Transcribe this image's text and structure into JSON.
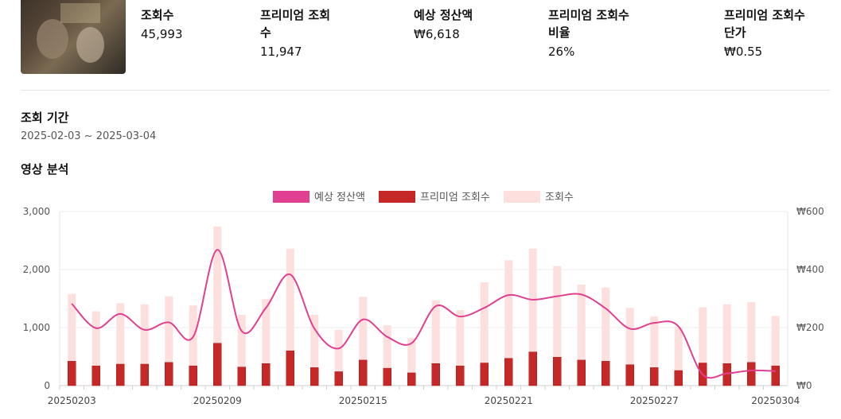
{
  "stats": [
    {
      "label": "조회수",
      "value": "45,993"
    },
    {
      "label": "프리미엄 조회수",
      "value": "11,947"
    },
    {
      "label": "예상 정산액",
      "value": "₩6,618"
    },
    {
      "label": "프리미엄 조회수 비율",
      "value": "26%"
    },
    {
      "label": "프리미엄 조회수 단가",
      "value": "₩0.55"
    }
  ],
  "period": {
    "title": "조회 기간",
    "value": "2025-02-03 ~ 2025-03-04"
  },
  "analysis": {
    "title": "영상 분석"
  },
  "chart_data": {
    "type": "bar",
    "x": [
      "20250203",
      "20250204",
      "20250205",
      "20250206",
      "20250207",
      "20250208",
      "20250209",
      "20250210",
      "20250211",
      "20250212",
      "20250213",
      "20250214",
      "20250215",
      "20250216",
      "20250217",
      "20250218",
      "20250219",
      "20250220",
      "20250221",
      "20250222",
      "20250223",
      "20250224",
      "20250225",
      "20250226",
      "20250227",
      "20250228",
      "20250301",
      "20250302",
      "20250303",
      "20250304"
    ],
    "x_tick_labels": [
      "20250203",
      "20250209",
      "20250215",
      "20250221",
      "20250227",
      "20250304"
    ],
    "series": [
      {
        "name": "조회수",
        "kind": "bar",
        "axis": "left",
        "color": "#fde0dd",
        "values": [
          1580,
          1280,
          1420,
          1400,
          1540,
          1380,
          2740,
          1220,
          1490,
          2360,
          1220,
          960,
          1530,
          1040,
          820,
          1470,
          1300,
          1780,
          2160,
          2360,
          2060,
          1740,
          1690,
          1340,
          1190,
          1010,
          1350,
          1400,
          1440,
          1200
        ]
      },
      {
        "name": "프리미엄 조회수",
        "kind": "bar",
        "axis": "left",
        "color": "#c62828",
        "values": [
          420,
          340,
          370,
          370,
          400,
          340,
          730,
          320,
          380,
          600,
          310,
          240,
          440,
          300,
          220,
          380,
          340,
          390,
          470,
          580,
          490,
          440,
          420,
          360,
          310,
          260,
          390,
          380,
          400,
          340
        ]
      },
      {
        "name": "예상 정산액",
        "kind": "line",
        "axis": "right",
        "color": "#e0408f",
        "values": [
          282,
          198,
          247,
          192,
          218,
          168,
          468,
          188,
          268,
          383,
          196,
          128,
          228,
          168,
          146,
          274,
          238,
          268,
          312,
          296,
          308,
          314,
          266,
          196,
          216,
          204,
          38,
          42,
          52,
          50
        ]
      }
    ],
    "y_left": {
      "range": [
        0,
        3000
      ],
      "ticks": [
        "0",
        "1,000",
        "2,000",
        "3,000"
      ]
    },
    "y_right": {
      "range": [
        0,
        600
      ],
      "ticks": [
        "₩0",
        "₩200",
        "₩400",
        "₩600"
      ]
    },
    "legend_position": "top-center",
    "grid": true
  }
}
